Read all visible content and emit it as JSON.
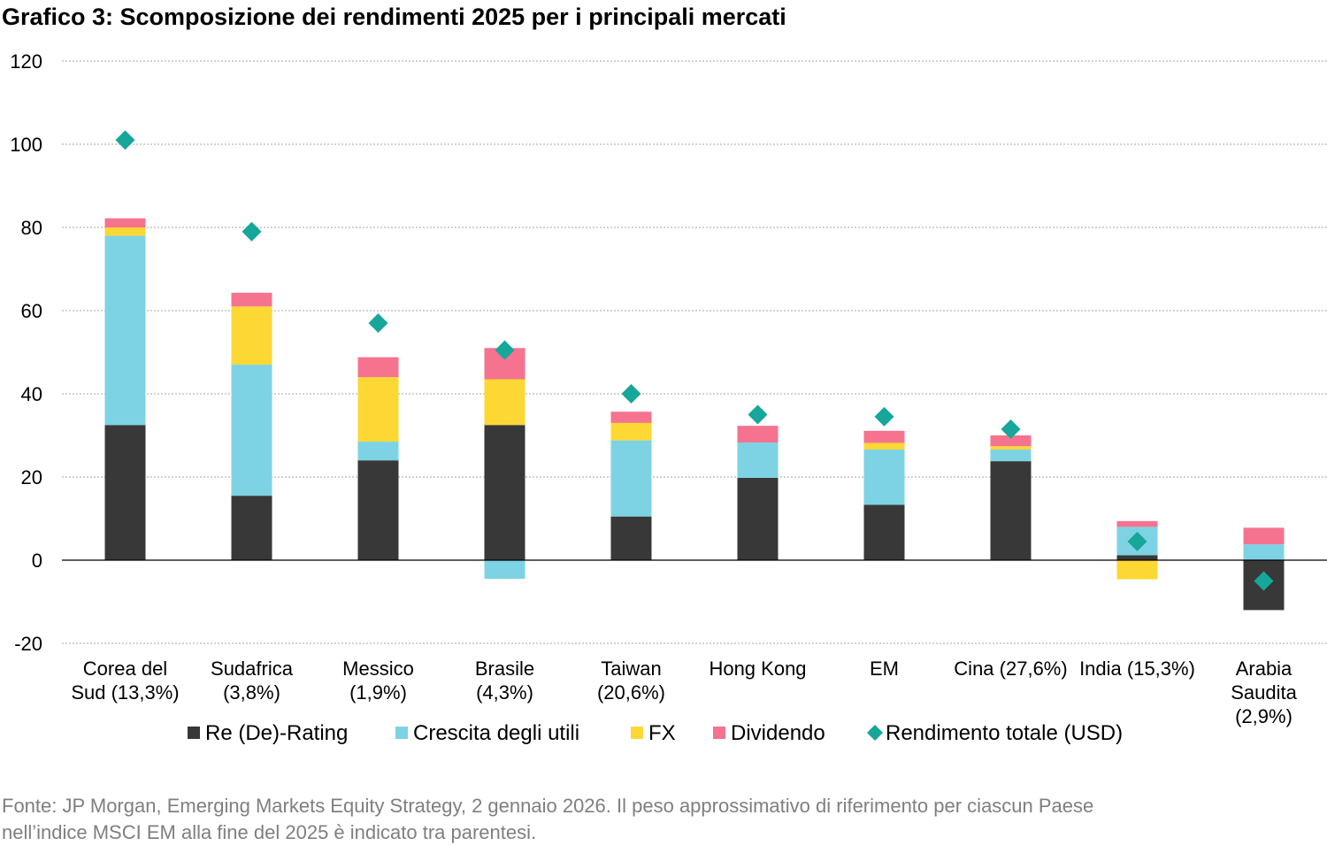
{
  "title": "Grafico 3: Scomposizione dei rendimenti 2025 per i principali mercati",
  "source": [
    "Fonte: JP Morgan, Emerging Markets Equity Strategy, 2 gennaio 2026. Il peso approssimativo di riferimento per ciascun Paese",
    "nell’indice MSCI EM alla fine del 2025 è indicato tra parentesi."
  ],
  "colors": {
    "Re (De)-Rating": "#383838",
    "Crescita degli utili": "#7dd3e3",
    "FX": "#fdd835",
    "Dividendo": "#f5738f",
    "Rendimento totale (USD)": "#16a69a"
  },
  "chart_data": {
    "type": "bar",
    "stacked": true,
    "categories": [
      [
        "Corea del",
        "Sud (13,3%)"
      ],
      [
        "Sudafrica",
        "(3,8%)"
      ],
      [
        "Messico",
        "(1,9%)"
      ],
      [
        "Brasile",
        "(4,3%)"
      ],
      [
        "Taiwan",
        "(20,6%)"
      ],
      [
        "Hong Kong"
      ],
      [
        "EM"
      ],
      [
        "Cina (27,6%)"
      ],
      [
        "India (15,3%)"
      ],
      [
        "Arabia",
        "Saudita",
        "(2,9%)"
      ]
    ],
    "series": [
      {
        "name": "Re (De)-Rating",
        "values": [
          32.5,
          15.5,
          24,
          32.5,
          10.5,
          19.8,
          13.3,
          23.8,
          1.2,
          -12
        ]
      },
      {
        "name": "Crescita degli utili",
        "values": [
          45.5,
          31.5,
          4.5,
          -4.5,
          18.3,
          8.5,
          13.3,
          2.8,
          6.8,
          3.8
        ]
      },
      {
        "name": "FX",
        "values": [
          2,
          14,
          15.5,
          11,
          4.2,
          0,
          1.6,
          0.8,
          -4.6,
          0
        ]
      },
      {
        "name": "Dividendo",
        "values": [
          2.2,
          3.3,
          4.8,
          7.5,
          2.7,
          4,
          2.9,
          2.6,
          1.4,
          4
        ]
      },
      {
        "name": "Rendimento totale (USD)",
        "type": "marker",
        "values": [
          101,
          79,
          57,
          50.5,
          40,
          35,
          34.5,
          31.5,
          4.5,
          -5
        ]
      }
    ],
    "ylim": [
      -20,
      120
    ],
    "yticks": [
      -20,
      0,
      20,
      40,
      60,
      80,
      100,
      120
    ],
    "grid": true,
    "legend": "bottom"
  }
}
